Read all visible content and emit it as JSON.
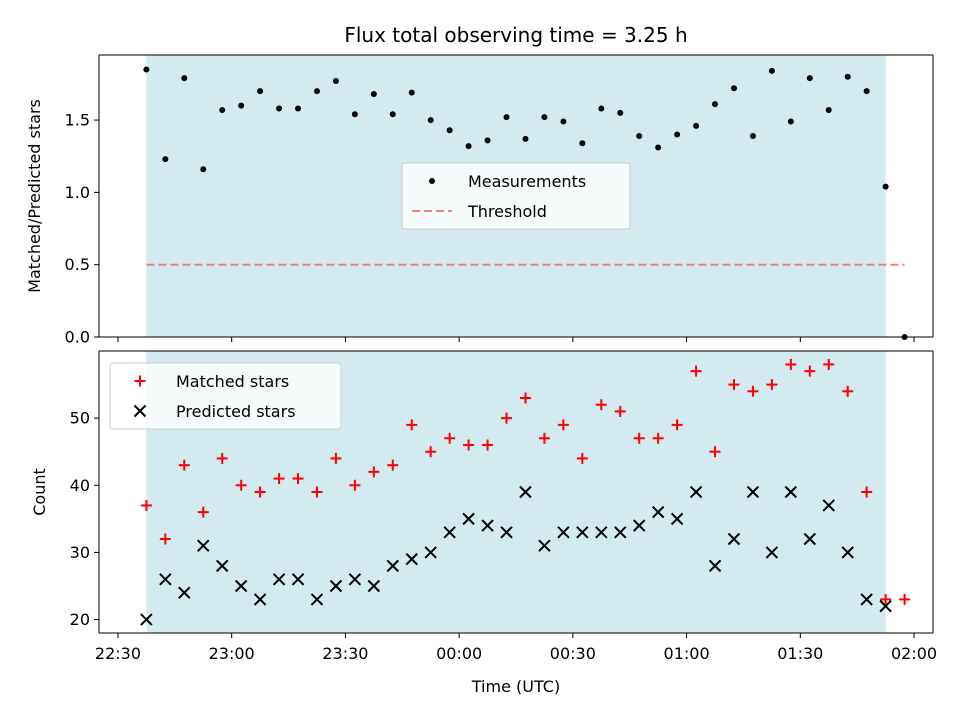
{
  "chart_data": {
    "title": "Flux total observing time = 3.25 h",
    "xlabel": "Time (UTC)",
    "x_tick_labels": [
      "22:30",
      "23:00",
      "23:30",
      "00:00",
      "00:30",
      "01:00",
      "01:30",
      "02:00"
    ],
    "x_tick_minutes": [
      0,
      30,
      60,
      90,
      120,
      150,
      180,
      210
    ],
    "shade_range_minutes": [
      7.5,
      202.5
    ],
    "shade_color": "#d3eaf0",
    "panels": [
      {
        "type": "scatter",
        "ylabel": "Matched/Predicted stars",
        "ylim": [
          0,
          1.95
        ],
        "y_ticks": [
          0.0,
          0.5,
          1.0,
          1.5
        ],
        "y_tick_labels": [
          "0.0",
          "0.5",
          "1.0",
          "1.5"
        ],
        "legend_placement": "center",
        "series": [
          {
            "name": "Measurements",
            "marker": "dot",
            "color": "#000000",
            "x_minutes": [
              7.5,
              12.5,
              17.5,
              22.5,
              27.5,
              32.5,
              37.5,
              42.5,
              47.5,
              52.5,
              57.5,
              62.5,
              67.5,
              72.5,
              77.5,
              82.5,
              87.5,
              92.5,
              97.5,
              102.5,
              107.5,
              112.5,
              117.5,
              122.5,
              127.5,
              132.5,
              137.5,
              142.5,
              147.5,
              152.5,
              157.5,
              162.5,
              167.5,
              172.5,
              177.5,
              182.5,
              187.5,
              192.5,
              197.5,
              202.5,
              207.5
            ],
            "y": [
              1.85,
              1.23,
              1.79,
              1.16,
              1.57,
              1.6,
              1.7,
              1.58,
              1.58,
              1.7,
              1.77,
              1.54,
              1.68,
              1.54,
              1.69,
              1.5,
              1.43,
              1.32,
              1.36,
              1.52,
              1.37,
              1.52,
              1.49,
              1.34,
              1.58,
              1.55,
              1.39,
              1.31,
              1.4,
              1.46,
              1.61,
              1.72,
              1.39,
              1.84,
              1.49,
              1.79,
              1.57,
              1.8,
              1.7,
              1.04,
              0.0
            ]
          },
          {
            "name": "Threshold",
            "marker": "dashed-line",
            "color": "#f08080",
            "x_minutes": [
              7.5,
              207.5
            ],
            "y": [
              0.5,
              0.5
            ]
          }
        ]
      },
      {
        "type": "scatter",
        "ylabel": "Count",
        "ylim": [
          18,
          60
        ],
        "y_ticks": [
          20,
          30,
          40,
          50
        ],
        "y_tick_labels": [
          "20",
          "30",
          "40",
          "50"
        ],
        "legend_placement": "upper-left",
        "series": [
          {
            "name": "Matched stars",
            "marker": "plus",
            "color": "#ff0000",
            "x_minutes": [
              7.5,
              12.5,
              17.5,
              22.5,
              27.5,
              32.5,
              37.5,
              42.5,
              47.5,
              52.5,
              57.5,
              62.5,
              67.5,
              72.5,
              77.5,
              82.5,
              87.5,
              92.5,
              97.5,
              102.5,
              107.5,
              112.5,
              117.5,
              122.5,
              127.5,
              132.5,
              137.5,
              142.5,
              147.5,
              152.5,
              157.5,
              162.5,
              167.5,
              172.5,
              177.5,
              182.5,
              187.5,
              192.5,
              197.5,
              202.5,
              207.5
            ],
            "y": [
              37,
              32,
              43,
              36,
              44,
              40,
              39,
              41,
              41,
              39,
              44,
              40,
              42,
              43,
              49,
              45,
              47,
              46,
              46,
              50,
              53,
              47,
              49,
              44,
              52,
              51,
              47,
              47,
              49,
              57,
              45,
              55,
              54,
              55,
              58,
              57,
              58,
              54,
              39,
              23,
              23
            ]
          },
          {
            "name": "Predicted stars",
            "marker": "x",
            "color": "#000000",
            "x_minutes": [
              7.5,
              12.5,
              17.5,
              22.5,
              27.5,
              32.5,
              37.5,
              42.5,
              47.5,
              52.5,
              57.5,
              62.5,
              67.5,
              72.5,
              77.5,
              82.5,
              87.5,
              92.5,
              97.5,
              102.5,
              107.5,
              112.5,
              117.5,
              122.5,
              127.5,
              132.5,
              137.5,
              142.5,
              147.5,
              152.5,
              157.5,
              162.5,
              167.5,
              172.5,
              177.5,
              182.5,
              187.5,
              192.5,
              197.5,
              202.5
            ],
            "y": [
              20,
              26,
              24,
              31,
              28,
              25,
              23,
              26,
              26,
              23,
              25,
              26,
              25,
              28,
              29,
              30,
              33,
              35,
              34,
              33,
              39,
              31,
              33,
              33,
              33,
              33,
              34,
              36,
              35,
              39,
              28,
              32,
              39,
              30,
              39,
              32,
              37,
              30,
              23,
              22
            ]
          }
        ]
      }
    ]
  }
}
